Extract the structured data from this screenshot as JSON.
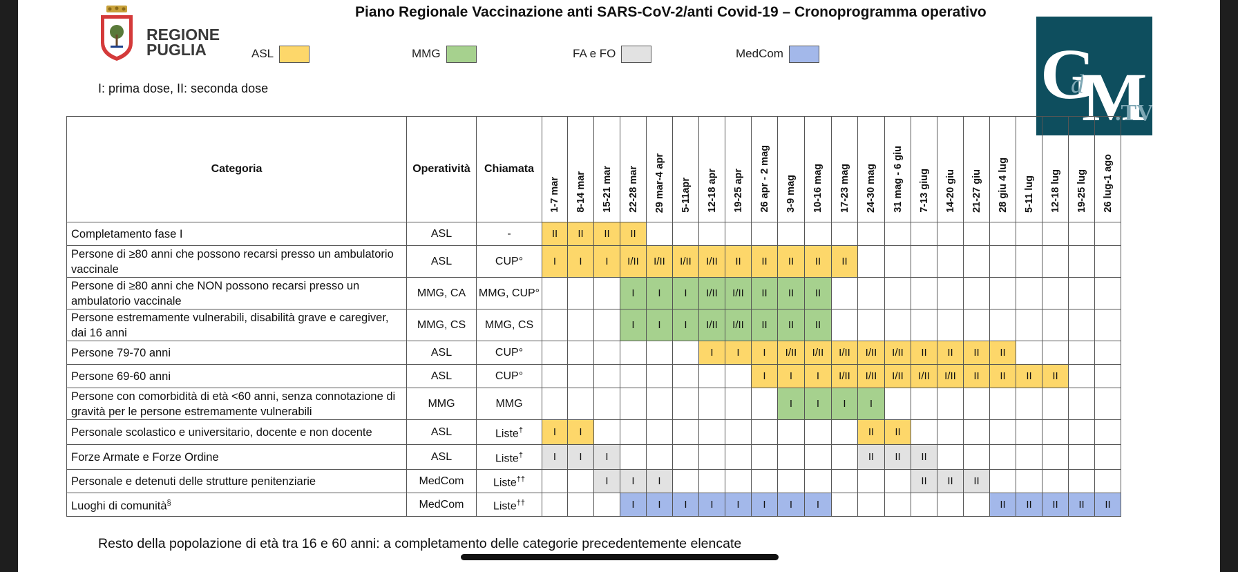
{
  "title": "Piano Regionale Vaccinazione anti SARS-CoV-2/anti Covid-19 – Cronoprogramma operativo",
  "logo": {
    "line1": "REGIONE",
    "line2": "PUGLIA"
  },
  "gdm_logo": "GdM.TV",
  "legend": [
    {
      "label": "ASL",
      "code": "ASL",
      "color": "#fdd76a"
    },
    {
      "label": "MMG",
      "code": "MMG",
      "color": "#a6d18e"
    },
    {
      "label": "FA e FO",
      "code": "FAFO",
      "color": "#e2e2e2"
    },
    {
      "label": "MedCom",
      "code": "MedCom",
      "color": "#a3b8ea"
    }
  ],
  "dose_note": "I: prima dose, II: seconda dose",
  "table": {
    "headers": {
      "category": "Categoria",
      "operativita": "Operatività",
      "chiamata": "Chiamata"
    },
    "weeks": [
      "1-7 mar",
      "8-14 mar",
      "15-21 mar",
      "22-28 mar",
      "29 mar-4 apr",
      "5-11apr",
      "12-18 apr",
      "19-25 apr",
      "26 apr - 2 mag",
      "3-9 mag",
      "10-16 mag",
      "17-23 mag",
      "24-30 mag",
      "31 mag - 6 giu",
      "7-13 giug",
      "14-20 giu",
      "21-27 giu",
      "28 giu 4 lug",
      "5-11 lug",
      "12-18 lug",
      "19-25 lug",
      "26 lug-1 ago"
    ],
    "rows": [
      {
        "category": "Completamento fase I",
        "operativita": "ASL",
        "chiamata": "-",
        "chiamata_sup": "",
        "cells": [
          "ASL:II",
          "ASL:II",
          "ASL:II",
          "ASL:II",
          "",
          "",
          "",
          "",
          "",
          "",
          "",
          "",
          "",
          "",
          "",
          "",
          "",
          "",
          "",
          "",
          "",
          ""
        ]
      },
      {
        "category": "Persone di ≥80 anni che possono recarsi presso un ambulatorio vaccinale",
        "operativita": "ASL",
        "chiamata": "CUP°",
        "chiamata_sup": "",
        "cells": [
          "ASL:I",
          "ASL:I",
          "ASL:I",
          "ASL:I/II",
          "ASL:I/II",
          "ASL:I/II",
          "ASL:I/II",
          "ASL:II",
          "ASL:II",
          "ASL:II",
          "ASL:II",
          "ASL:II",
          "",
          "",
          "",
          "",
          "",
          "",
          "",
          "",
          "",
          ""
        ]
      },
      {
        "category": "Persone di ≥80 anni che NON possono recarsi presso un ambulatorio vaccinale",
        "operativita": "MMG, CA",
        "chiamata": "MMG, CUP°",
        "chiamata_sup": "",
        "cells": [
          "",
          "",
          "",
          "MMG:I",
          "MMG:I",
          "MMG:I",
          "MMG:I/II",
          "MMG:I/II",
          "MMG:II",
          "MMG:II",
          "MMG:II",
          "",
          "",
          "",
          "",
          "",
          "",
          "",
          "",
          "",
          "",
          ""
        ]
      },
      {
        "category": "Persone estremamente vulnerabili, disabilità grave e caregiver, dai 16 anni",
        "operativita": "MMG, CS",
        "chiamata": "MMG, CS",
        "chiamata_sup": "",
        "cells": [
          "",
          "",
          "",
          "MMG:I",
          "MMG:I",
          "MMG:I",
          "MMG:I/II",
          "MMG:I/II",
          "MMG:II",
          "MMG:II",
          "MMG:II",
          "",
          "",
          "",
          "",
          "",
          "",
          "",
          "",
          "",
          "",
          ""
        ]
      },
      {
        "category": "Persone 79-70 anni",
        "operativita": "ASL",
        "chiamata": "CUP°",
        "chiamata_sup": "",
        "cells": [
          "",
          "",
          "",
          "",
          "",
          "",
          "ASL:I",
          "ASL:I",
          "ASL:I",
          "ASL:I/II",
          "ASL:I/II",
          "ASL:I/II",
          "ASL:I/II",
          "ASL:I/II",
          "ASL:II",
          "ASL:II",
          "ASL:II",
          "ASL:II",
          "",
          "",
          "",
          ""
        ]
      },
      {
        "category": "Persone 69-60 anni",
        "operativita": "ASL",
        "chiamata": "CUP°",
        "chiamata_sup": "",
        "cells": [
          "",
          "",
          "",
          "",
          "",
          "",
          "",
          "",
          "ASL:I",
          "ASL:I",
          "ASL:I",
          "ASL:I/II",
          "ASL:I/II",
          "ASL:I/II",
          "ASL:I/II",
          "ASL:I/II",
          "ASL:II",
          "ASL:II",
          "ASL:II",
          "ASL:II",
          "",
          ""
        ]
      },
      {
        "category": "Persone con comorbidità di età <60 anni, senza connotazione di gravità per le persone estremamente vulnerabili",
        "operativita": "MMG",
        "chiamata": "MMG",
        "chiamata_sup": "",
        "cells": [
          "",
          "",
          "",
          "",
          "",
          "",
          "",
          "",
          "",
          "MMG:I",
          "MMG:I",
          "MMG:I",
          "MMG:I",
          "",
          "",
          "",
          "",
          "",
          "",
          "",
          "",
          ""
        ]
      },
      {
        "category": "Personale scolastico e universitario, docente e non docente",
        "operativita": "ASL",
        "chiamata": "Liste",
        "chiamata_sup": "†",
        "cells": [
          "ASL:I",
          "ASL:I",
          "",
          "",
          "",
          "",
          "",
          "",
          "",
          "",
          "",
          "",
          "ASL:II",
          "ASL:II",
          "",
          "",
          "",
          "",
          "",
          "",
          "",
          ""
        ]
      },
      {
        "category": "Forze Armate e Forze Ordine",
        "operativita": "ASL",
        "chiamata": "Liste",
        "chiamata_sup": "†",
        "cells": [
          "FAFO:I",
          "FAFO:I",
          "FAFO:I",
          "",
          "",
          "",
          "",
          "",
          "",
          "",
          "",
          "",
          "FAFO:II",
          "FAFO:II",
          "FAFO:II",
          "",
          "",
          "",
          "",
          "",
          "",
          ""
        ]
      },
      {
        "category": "Personale e detenuti delle strutture penitenziarie",
        "operativita": "MedCom",
        "chiamata": "Liste",
        "chiamata_sup": "††",
        "cells": [
          "",
          "",
          "FAFO:I",
          "FAFO:I",
          "FAFO:I",
          "",
          "",
          "",
          "",
          "",
          "",
          "",
          "",
          "",
          "FAFO:II",
          "FAFO:II",
          "FAFO:II",
          "",
          "",
          "",
          "",
          ""
        ]
      },
      {
        "category": "Luoghi di comunità",
        "category_sup": "§",
        "operativita": "MedCom",
        "chiamata": "Liste",
        "chiamata_sup": "††",
        "cells": [
          "",
          "",
          "",
          "MedCom:I",
          "MedCom:I",
          "MedCom:I",
          "MedCom:I",
          "MedCom:I",
          "MedCom:I",
          "MedCom:I",
          "MedCom:I",
          "",
          "",
          "",
          "",
          "",
          "",
          "MedCom:II",
          "MedCom:II",
          "MedCom:II",
          "MedCom:II",
          "MedCom:II"
        ]
      }
    ]
  },
  "footnote": "Resto della popolazione di età tra 16 e 60 anni: a completamento delle categorie precedentemente elencate"
}
